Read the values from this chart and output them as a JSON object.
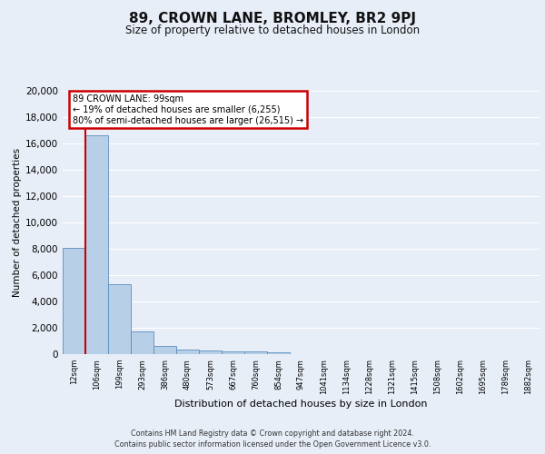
{
  "title": "89, CROWN LANE, BROMLEY, BR2 9PJ",
  "subtitle": "Size of property relative to detached houses in London",
  "xlabel": "Distribution of detached houses by size in London",
  "ylabel": "Number of detached properties",
  "footer_line1": "Contains HM Land Registry data © Crown copyright and database right 2024.",
  "footer_line2": "Contains public sector information licensed under the Open Government Licence v3.0.",
  "bar_labels": [
    "12sqm",
    "106sqm",
    "199sqm",
    "293sqm",
    "386sqm",
    "480sqm",
    "573sqm",
    "667sqm",
    "760sqm",
    "854sqm",
    "947sqm",
    "1041sqm",
    "1134sqm",
    "1228sqm",
    "1321sqm",
    "1415sqm",
    "1508sqm",
    "1602sqm",
    "1695sqm",
    "1789sqm",
    "1882sqm"
  ],
  "bar_heights": [
    8100,
    16600,
    5300,
    1750,
    650,
    350,
    260,
    210,
    190,
    160,
    0,
    0,
    0,
    0,
    0,
    0,
    0,
    0,
    0,
    0,
    0
  ],
  "bar_color": "#b8cfe8",
  "bar_edge_color": "#5a8dbf",
  "ylim": [
    0,
    20000
  ],
  "yticks": [
    0,
    2000,
    4000,
    6000,
    8000,
    10000,
    12000,
    14000,
    16000,
    18000,
    20000
  ],
  "red_line_x": 0.5,
  "annotation_text_line1": "89 CROWN LANE: 99sqm",
  "annotation_text_line2": "← 19% of detached houses are smaller (6,255)",
  "annotation_text_line3": "80% of semi-detached houses are larger (26,515) →",
  "annotation_box_facecolor": "#ffffff",
  "annotation_box_edgecolor": "#cc0000",
  "red_line_color": "#cc0000",
  "background_color": "#e8eef8",
  "grid_color": "#ffffff"
}
